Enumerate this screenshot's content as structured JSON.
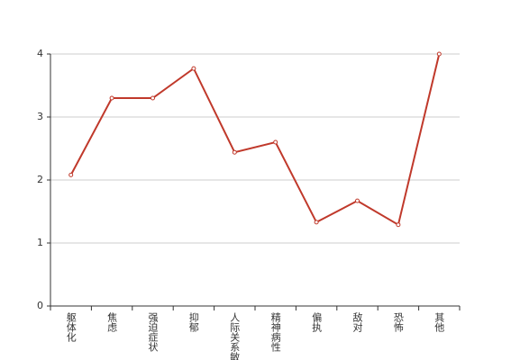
{
  "chart_data": {
    "type": "line",
    "categories": [
      "躯体化",
      "焦虑",
      "强迫症状",
      "抑郁",
      "人际关系敏感",
      "精神病性",
      "偏执",
      "敌对",
      "恐怖",
      "其他"
    ],
    "series": [
      {
        "color": "#c0392b",
        "values": [
          2.08,
          3.3,
          3.3,
          3.77,
          2.44,
          2.6,
          1.33,
          1.67,
          1.29,
          4.0
        ]
      }
    ],
    "ylim": [
      0,
      4
    ],
    "yticks": [
      0,
      1,
      2,
      3,
      4
    ],
    "grid": true
  }
}
